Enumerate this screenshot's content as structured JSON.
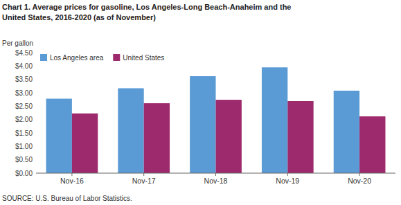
{
  "chart_data": {
    "type": "bar",
    "title": [
      "Chart 1. Average prices for gasoline, Los Angeles-Long Beach-Anaheim and the",
      "United States, 2016-2020 (as of November)"
    ],
    "ylabel": "Per gallon",
    "annotations": [
      "SOURCE: U.S. Bureau of Labor Statistics."
    ],
    "categories": [
      "Nov-16",
      "Nov-17",
      "Nov-18",
      "Nov-19",
      "Nov-20"
    ],
    "series": [
      {
        "name": "Los Angeles area",
        "color": "#5B9BD5",
        "values": [
          2.78,
          3.17,
          3.62,
          3.95,
          3.08
        ]
      },
      {
        "name": "United States",
        "color": "#9E2A6E",
        "values": [
          2.23,
          2.61,
          2.74,
          2.69,
          2.12
        ]
      }
    ],
    "ylim": [
      0,
      4.5
    ],
    "yticks": [
      {
        "value": 0.0,
        "label": "$0.00"
      },
      {
        "value": 0.5,
        "label": "$0.50"
      },
      {
        "value": 1.0,
        "label": "$1.00"
      },
      {
        "value": 1.5,
        "label": "$1.50"
      },
      {
        "value": 2.0,
        "label": "$2.00"
      },
      {
        "value": 2.5,
        "label": "$2.50"
      },
      {
        "value": 3.0,
        "label": "$3.00"
      },
      {
        "value": 3.5,
        "label": "$3.50"
      },
      {
        "value": 4.0,
        "label": "$4.00"
      },
      {
        "value": 4.5,
        "label": "$4.50"
      }
    ],
    "grid": false,
    "legend": "top-left"
  }
}
